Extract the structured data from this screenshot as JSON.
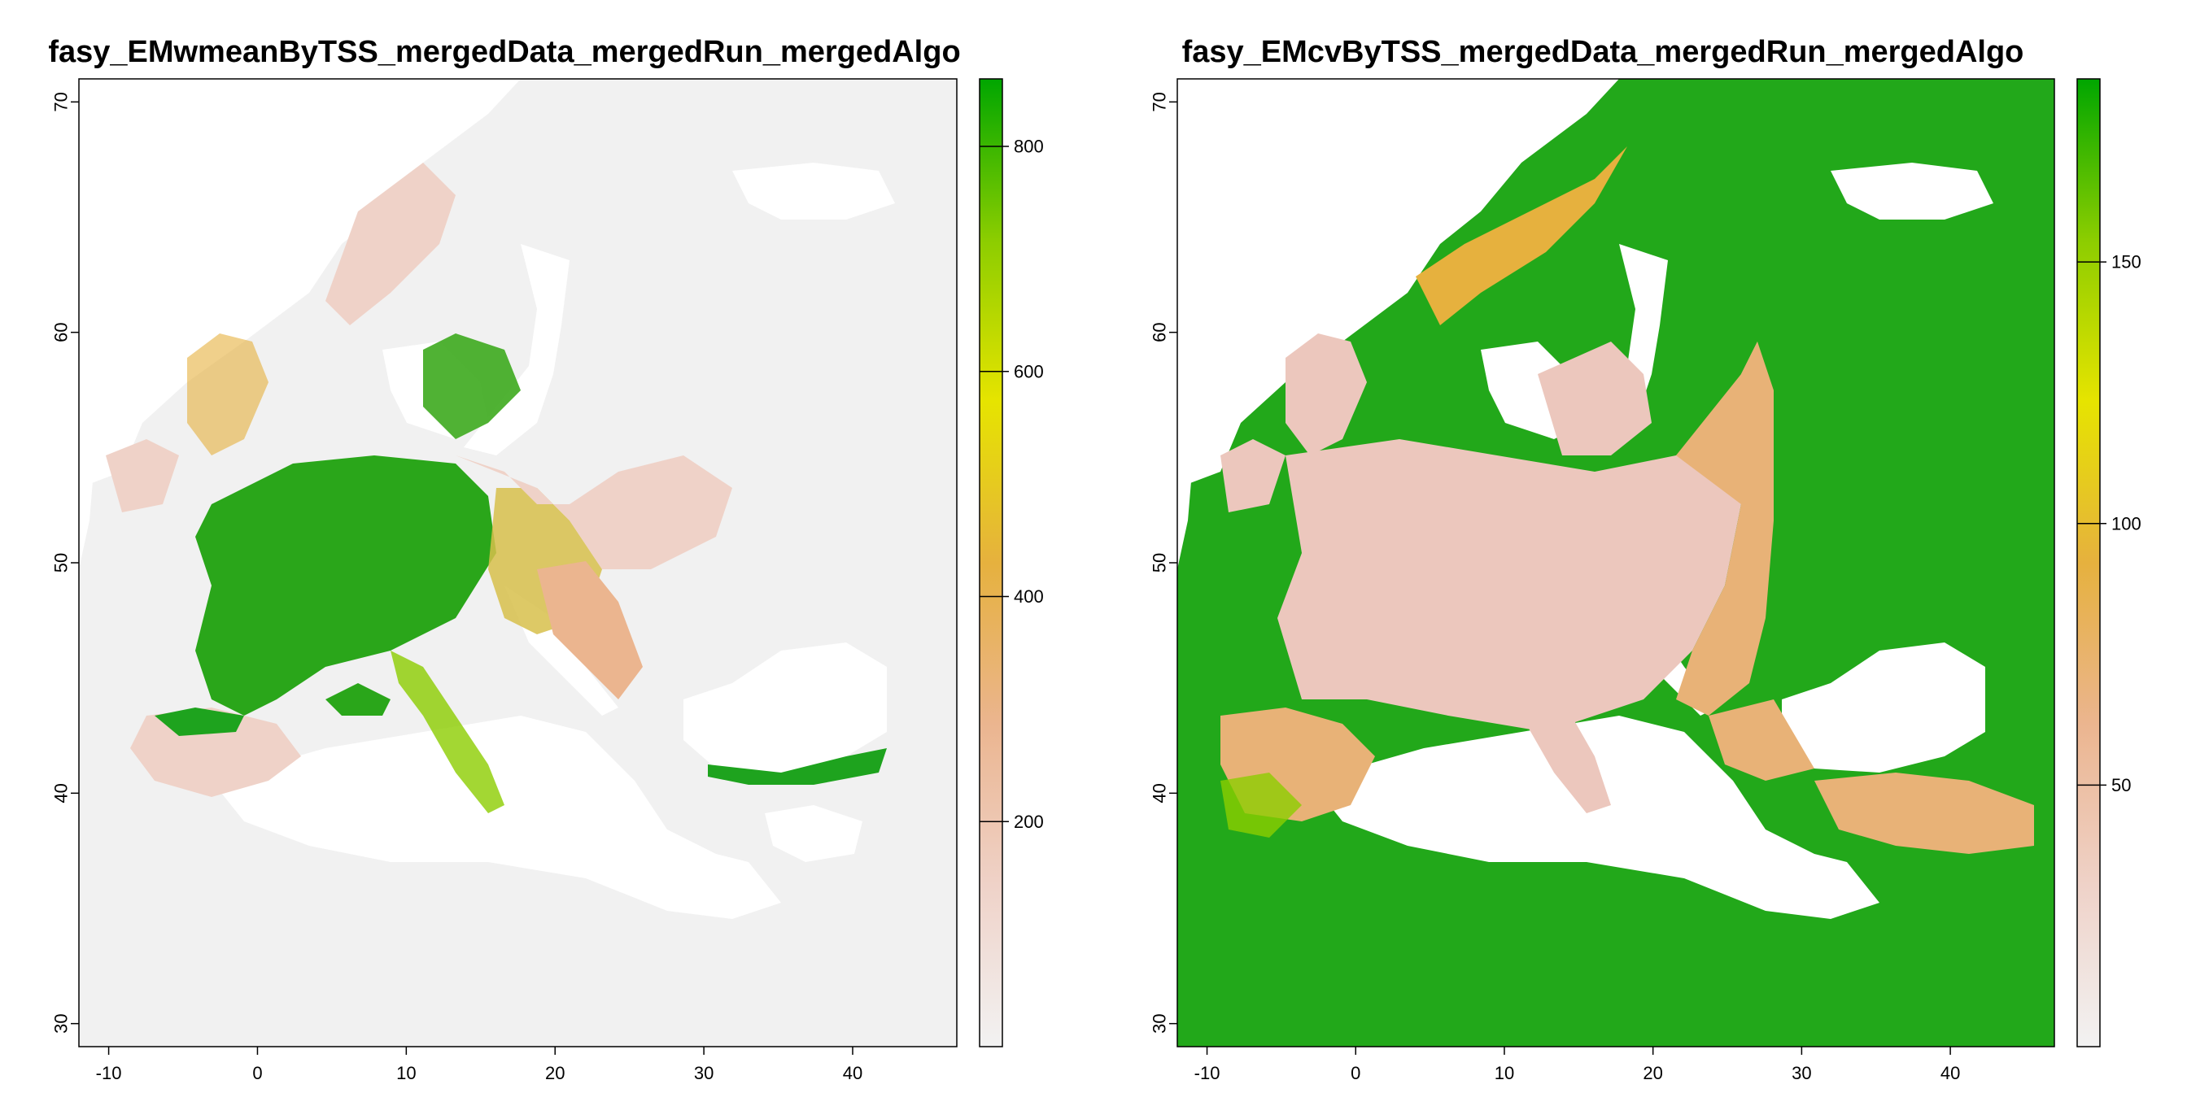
{
  "panels": [
    {
      "title": "fasy_EMwmeanByTSS_mergedData_mergedRun_mergedAlgo",
      "x_ticks": [
        "-10",
        "0",
        "10",
        "20",
        "30",
        "40"
      ],
      "y_ticks": [
        "30",
        "40",
        "50",
        "60",
        "70"
      ],
      "legend_ticks": [
        "200",
        "400",
        "600",
        "800"
      ],
      "legend_range": [
        0,
        860
      ],
      "colors": {
        "land": "#f1f1f1",
        "sea": "#ffffff",
        "low": "#ecc7bd",
        "mid": "#e8b23f",
        "high": "#0fa30f"
      },
      "color_scale": [
        "#f2f2f2",
        "#efd2c8",
        "#ebb58f",
        "#e6b13e",
        "#e6e400",
        "#8ccd00",
        "#00a600"
      ]
    },
    {
      "title": "fasy_EMcvByTSS_mergedData_mergedRun_mergedAlgo",
      "x_ticks": [
        "-10",
        "0",
        "10",
        "20",
        "30",
        "40"
      ],
      "y_ticks": [
        "30",
        "40",
        "50",
        "60",
        "70"
      ],
      "legend_ticks": [
        "50",
        "100",
        "150"
      ],
      "legend_range": [
        0,
        185
      ],
      "colors": {
        "land": "#1ca81c",
        "sea": "#ffffff",
        "low": "#ecc2b2",
        "mid": "#e8b23f",
        "high": "#0fa30f"
      },
      "color_scale": [
        "#f2f2f2",
        "#efd2c8",
        "#ebb58f",
        "#e6b13e",
        "#e6e400",
        "#8ccd00",
        "#00a600"
      ]
    }
  ]
}
